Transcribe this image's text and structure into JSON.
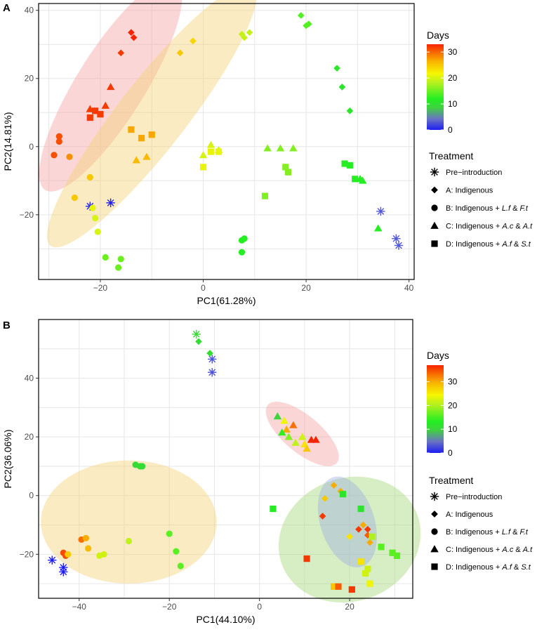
{
  "chart_data": [
    {
      "panel_label": "A",
      "type": "scatter",
      "xlabel": "PC1(61.28%)",
      "ylabel": "PC2(14.81%)",
      "xlim": [
        -32,
        41
      ],
      "ylim": [
        -39,
        42
      ],
      "xticks": [
        -20,
        0,
        20,
        40
      ],
      "xtick_labels": [
        "−20",
        "0",
        "20",
        "40"
      ],
      "yticks": [
        -20,
        0,
        20,
        40
      ],
      "ytick_labels": [
        "−20",
        "0",
        "20",
        "40"
      ],
      "color_scale": {
        "title": "Days",
        "min": 0,
        "max": 33,
        "ticks": [
          0,
          10,
          20,
          30
        ],
        "tick_labels": [
          "0",
          "10",
          "20",
          "30"
        ]
      },
      "legend_title": "Treatment",
      "legend": [
        {
          "shape": "star",
          "label": "Pre−introduction",
          "parts": []
        },
        {
          "shape": "diamond",
          "label": "A: Indigenous",
          "parts": []
        },
        {
          "shape": "circle",
          "label": "B: Indigenous + L.f & F.t",
          "parts": [
            [
              "B: Indigenous + ",
              false
            ],
            [
              "L.f",
              true
            ],
            [
              " & ",
              false
            ],
            [
              "F.t",
              true
            ]
          ]
        },
        {
          "shape": "triangle",
          "label": "C: Indigenous + A.c & A.t",
          "parts": [
            [
              "C: Indigenous + ",
              false
            ],
            [
              "A.c",
              true
            ],
            [
              " & ",
              false
            ],
            [
              "A.t",
              true
            ]
          ]
        },
        {
          "shape": "square",
          "label": "D: Indigenous + A.f & S.t",
          "parts": [
            [
              "D: Indigenous + ",
              false
            ],
            [
              "A.f",
              true
            ],
            [
              " & ",
              false
            ],
            [
              "S.t",
              true
            ]
          ]
        }
      ],
      "ellipses": [
        {
          "cx": -18,
          "cy": 18,
          "rx": 24,
          "ry": 10,
          "angle": 58,
          "color": "#f4a3a3"
        },
        {
          "cx": -10,
          "cy": 9,
          "rx": 32,
          "ry": 10,
          "angle": 52,
          "color": "#f3d27a"
        }
      ],
      "points": [
        {
          "shape": "star",
          "x": -22,
          "y": -17.5,
          "day": 0
        },
        {
          "shape": "star",
          "x": -18,
          "y": -16.5,
          "day": 0
        },
        {
          "shape": "star",
          "x": 34.5,
          "y": -19,
          "day": 3
        },
        {
          "shape": "star",
          "x": 37.5,
          "y": -27,
          "day": 3
        },
        {
          "shape": "star",
          "x": 38,
          "y": -29,
          "day": 3
        },
        {
          "shape": "diamond",
          "x": -14,
          "y": 33.5,
          "day": 33
        },
        {
          "shape": "diamond",
          "x": -13.5,
          "y": 32,
          "day": 33
        },
        {
          "shape": "diamond",
          "x": -16,
          "y": 27.5,
          "day": 32
        },
        {
          "shape": "diamond",
          "x": -2,
          "y": 31,
          "day": 24
        },
        {
          "shape": "diamond",
          "x": -4.5,
          "y": 27.5,
          "day": 25
        },
        {
          "shape": "diamond",
          "x": 7.5,
          "y": 33,
          "day": 19
        },
        {
          "shape": "diamond",
          "x": 8,
          "y": 32,
          "day": 19
        },
        {
          "shape": "diamond",
          "x": 9,
          "y": 33.5,
          "day": 19
        },
        {
          "shape": "diamond",
          "x": 19,
          "y": 38.5,
          "day": 14
        },
        {
          "shape": "diamond",
          "x": 20,
          "y": 35.5,
          "day": 14
        },
        {
          "shape": "diamond",
          "x": 20.5,
          "y": 36,
          "day": 14
        },
        {
          "shape": "diamond",
          "x": 26,
          "y": 23,
          "day": 11
        },
        {
          "shape": "diamond",
          "x": 27,
          "y": 17.5,
          "day": 11
        },
        {
          "shape": "diamond",
          "x": 28.5,
          "y": 10.5,
          "day": 11
        },
        {
          "shape": "circle",
          "x": -28,
          "y": 3,
          "day": 31
        },
        {
          "shape": "circle",
          "x": -28,
          "y": 1.5,
          "day": 31
        },
        {
          "shape": "circle",
          "x": -29,
          "y": -2.5,
          "day": 31
        },
        {
          "shape": "circle",
          "x": -26,
          "y": -3,
          "day": 28
        },
        {
          "shape": "circle",
          "x": -22,
          "y": -9,
          "day": 25
        },
        {
          "shape": "circle",
          "x": -25,
          "y": -15,
          "day": 25
        },
        {
          "shape": "circle",
          "x": -21.5,
          "y": -18,
          "day": 21
        },
        {
          "shape": "circle",
          "x": -21,
          "y": -21,
          "day": 20
        },
        {
          "shape": "circle",
          "x": -20.5,
          "y": -25,
          "day": 20
        },
        {
          "shape": "circle",
          "x": -19,
          "y": -32.5,
          "day": 15
        },
        {
          "shape": "circle",
          "x": -16,
          "y": -33,
          "day": 15
        },
        {
          "shape": "circle",
          "x": -16.5,
          "y": -35.5,
          "day": 15
        },
        {
          "shape": "circle",
          "x": 7.5,
          "y": -27.5,
          "day": 12
        },
        {
          "shape": "circle",
          "x": 8,
          "y": -27,
          "day": 12
        },
        {
          "shape": "circle",
          "x": 7.5,
          "y": -31,
          "day": 12
        },
        {
          "shape": "triangle",
          "x": -22,
          "y": 11,
          "day": 32
        },
        {
          "shape": "triangle",
          "x": -19,
          "y": 12,
          "day": 32
        },
        {
          "shape": "triangle",
          "x": -18,
          "y": 17.5,
          "day": 32
        },
        {
          "shape": "triangle",
          "x": -13,
          "y": -4,
          "day": 26
        },
        {
          "shape": "triangle",
          "x": -11,
          "y": -3,
          "day": 26
        },
        {
          "shape": "triangle",
          "x": 0,
          "y": -2.5,
          "day": 20
        },
        {
          "shape": "triangle",
          "x": 1.5,
          "y": 0.5,
          "day": 20
        },
        {
          "shape": "triangle",
          "x": 3,
          "y": -1,
          "day": 20
        },
        {
          "shape": "triangle",
          "x": 12.5,
          "y": -0.5,
          "day": 16
        },
        {
          "shape": "triangle",
          "x": 15,
          "y": -0.5,
          "day": 16
        },
        {
          "shape": "triangle",
          "x": 17.5,
          "y": -0.5,
          "day": 16
        },
        {
          "shape": "triangle",
          "x": 30.5,
          "y": -9.5,
          "day": 12
        },
        {
          "shape": "triangle",
          "x": 31,
          "y": -10,
          "day": 12
        },
        {
          "shape": "triangle",
          "x": 34,
          "y": -24,
          "day": 12
        },
        {
          "shape": "square",
          "x": -22,
          "y": 8.5,
          "day": 32
        },
        {
          "shape": "square",
          "x": -21,
          "y": 10.5,
          "day": 32
        },
        {
          "shape": "square",
          "x": -20,
          "y": 9.5,
          "day": 32
        },
        {
          "shape": "square",
          "x": -14,
          "y": 5,
          "day": 27
        },
        {
          "shape": "square",
          "x": -12,
          "y": 2.5,
          "day": 27
        },
        {
          "shape": "square",
          "x": -10,
          "y": 3.5,
          "day": 27
        },
        {
          "shape": "square",
          "x": 0,
          "y": -6,
          "day": 21
        },
        {
          "shape": "square",
          "x": 1.5,
          "y": -1.5,
          "day": 21
        },
        {
          "shape": "square",
          "x": 3,
          "y": -1.5,
          "day": 21
        },
        {
          "shape": "square",
          "x": 12,
          "y": -14.5,
          "day": 16
        },
        {
          "shape": "square",
          "x": 16,
          "y": -6,
          "day": 16
        },
        {
          "shape": "square",
          "x": 16.5,
          "y": -7.5,
          "day": 16
        },
        {
          "shape": "square",
          "x": 27.5,
          "y": -5,
          "day": 12
        },
        {
          "shape": "square",
          "x": 28.5,
          "y": -5.5,
          "day": 12
        },
        {
          "shape": "square",
          "x": 29.5,
          "y": -9.5,
          "day": 12
        }
      ]
    },
    {
      "panel_label": "B",
      "type": "scatter",
      "xlabel": "PC1(44.10%)",
      "ylabel": "PC2(36.06%)",
      "xlim": [
        -49,
        34
      ],
      "ylim": [
        -35,
        60
      ],
      "xticks": [
        -40,
        -20,
        0,
        20
      ],
      "xtick_labels": [
        "−40",
        "−20",
        "0",
        "20"
      ],
      "yticks": [
        -20,
        0,
        20,
        40
      ],
      "ytick_labels": [
        "−20",
        "0",
        "20",
        "40"
      ],
      "color_scale": {
        "title": "Days",
        "min": 0,
        "max": 37,
        "ticks": [
          0,
          10,
          20,
          30
        ],
        "tick_labels": [
          "0",
          "10",
          "20",
          "30"
        ]
      },
      "legend_title": "Treatment",
      "legend": [
        {
          "shape": "star",
          "label": "Pre−introduction",
          "parts": []
        },
        {
          "shape": "diamond",
          "label": "A: Indigenous",
          "parts": []
        },
        {
          "shape": "circle",
          "label": "B: Indigenous + L.f & F.t",
          "parts": [
            [
              "B: Indigenous + ",
              false
            ],
            [
              "L.f",
              true
            ],
            [
              " & ",
              false
            ],
            [
              "F.t",
              true
            ]
          ]
        },
        {
          "shape": "triangle",
          "label": "C: Indigenous + A.c & A.t",
          "parts": [
            [
              "C: Indigenous + ",
              false
            ],
            [
              "A.c",
              true
            ],
            [
              " & ",
              false
            ],
            [
              "A.t",
              true
            ]
          ]
        },
        {
          "shape": "square",
          "label": "D: Indigenous + A.f & S.t",
          "parts": [
            [
              "D: Indigenous + ",
              false
            ],
            [
              "A.f",
              true
            ],
            [
              " & ",
              false
            ],
            [
              "S.t",
              true
            ]
          ]
        }
      ],
      "ellipses": [
        {
          "cx": -29,
          "cy": -9,
          "rx": 19.5,
          "ry": 21,
          "angle": 0,
          "color": "#f3d27a"
        },
        {
          "cx": 9.5,
          "cy": 21,
          "rx": 10,
          "ry": 6.3,
          "angle": -40,
          "color": "#f4a3a3"
        },
        {
          "cx": 20,
          "cy": -15,
          "rx": 16,
          "ry": 21,
          "angle": 20,
          "color": "#a7d67c"
        },
        {
          "cx": 19.5,
          "cy": -9,
          "rx": 6,
          "ry": 16,
          "angle": 18,
          "color": "#9fb4e0"
        }
      ],
      "points": [
        {
          "shape": "star",
          "x": -14,
          "y": 55,
          "day": 11
        },
        {
          "shape": "star",
          "x": -10.5,
          "y": 46.5,
          "day": 3
        },
        {
          "shape": "star",
          "x": -10.5,
          "y": 42,
          "day": 3
        },
        {
          "shape": "star",
          "x": -46,
          "y": -22,
          "day": 0
        },
        {
          "shape": "star",
          "x": -43.5,
          "y": -24.5,
          "day": 0
        },
        {
          "shape": "star",
          "x": -43.5,
          "y": -26,
          "day": 0
        },
        {
          "shape": "diamond",
          "x": -13.5,
          "y": 52.5,
          "day": 11
        },
        {
          "shape": "diamond",
          "x": -11,
          "y": 48.5,
          "day": 11
        },
        {
          "shape": "diamond",
          "x": 16.5,
          "y": 3.5,
          "day": 30
        },
        {
          "shape": "diamond",
          "x": 18,
          "y": 1.5,
          "day": 30
        },
        {
          "shape": "diamond",
          "x": 14.5,
          "y": -1,
          "day": 28
        },
        {
          "shape": "diamond",
          "x": 14,
          "y": -7,
          "day": 36
        },
        {
          "shape": "diamond",
          "x": 23,
          "y": -10,
          "day": 30
        },
        {
          "shape": "diamond",
          "x": 22,
          "y": -11.5,
          "day": 36
        },
        {
          "shape": "diamond",
          "x": 24,
          "y": -11.5,
          "day": 36
        },
        {
          "shape": "diamond",
          "x": 20,
          "y": -14,
          "day": 26
        },
        {
          "shape": "diamond",
          "x": 24.5,
          "y": -16,
          "day": 30
        },
        {
          "shape": "diamond",
          "x": 24,
          "y": -13.5,
          "day": 34
        },
        {
          "shape": "circle",
          "x": -27.5,
          "y": 10.5,
          "day": 11
        },
        {
          "shape": "circle",
          "x": -26.5,
          "y": 10,
          "day": 11
        },
        {
          "shape": "circle",
          "x": -26,
          "y": 10,
          "day": 11
        },
        {
          "shape": "circle",
          "x": -39.5,
          "y": -15,
          "day": 33
        },
        {
          "shape": "circle",
          "x": -38.5,
          "y": -14.5,
          "day": 30
        },
        {
          "shape": "circle",
          "x": -38,
          "y": -18,
          "day": 29
        },
        {
          "shape": "circle",
          "x": -35.5,
          "y": -20.5,
          "day": 22
        },
        {
          "shape": "circle",
          "x": -34.5,
          "y": -20,
          "day": 22
        },
        {
          "shape": "circle",
          "x": -29,
          "y": -15.5,
          "day": 21
        },
        {
          "shape": "circle",
          "x": -20,
          "y": -13,
          "day": 16
        },
        {
          "shape": "circle",
          "x": -18.5,
          "y": -19,
          "day": 16
        },
        {
          "shape": "circle",
          "x": -17.5,
          "y": -24,
          "day": 16
        },
        {
          "shape": "circle",
          "x": -43.5,
          "y": -19.5,
          "day": 35
        },
        {
          "shape": "circle",
          "x": -43,
          "y": -20.5,
          "day": 35
        },
        {
          "shape": "circle",
          "x": -42.5,
          "y": -20,
          "day": 28
        },
        {
          "shape": "triangle",
          "x": 4,
          "y": 27,
          "day": 10
        },
        {
          "shape": "triangle",
          "x": 5.5,
          "y": 25.5,
          "day": 24
        },
        {
          "shape": "triangle",
          "x": 6,
          "y": 22.5,
          "day": 30
        },
        {
          "shape": "triangle",
          "x": 7.5,
          "y": 24,
          "day": 33
        },
        {
          "shape": "triangle",
          "x": 5,
          "y": 21.5,
          "day": 14
        },
        {
          "shape": "triangle",
          "x": 6.5,
          "y": 20,
          "day": 18
        },
        {
          "shape": "triangle",
          "x": 8,
          "y": 18,
          "day": 21
        },
        {
          "shape": "triangle",
          "x": 9.5,
          "y": 20,
          "day": 22
        },
        {
          "shape": "triangle",
          "x": 10,
          "y": 17.5,
          "day": 26
        },
        {
          "shape": "triangle",
          "x": 10.5,
          "y": 16,
          "day": 28
        },
        {
          "shape": "triangle",
          "x": 11.5,
          "y": 19,
          "day": 37
        },
        {
          "shape": "triangle",
          "x": 12.5,
          "y": 19,
          "day": 37
        },
        {
          "shape": "square",
          "x": 3,
          "y": -4.5,
          "day": 13
        },
        {
          "shape": "square",
          "x": 18.5,
          "y": 0.5,
          "day": 12
        },
        {
          "shape": "square",
          "x": 22.5,
          "y": -4.5,
          "day": 12
        },
        {
          "shape": "square",
          "x": 25,
          "y": -14,
          "day": 20
        },
        {
          "shape": "square",
          "x": 27,
          "y": -17.5,
          "day": 16
        },
        {
          "shape": "square",
          "x": 29.5,
          "y": -19.5,
          "day": 16
        },
        {
          "shape": "square",
          "x": 30.5,
          "y": -20.5,
          "day": 16
        },
        {
          "shape": "square",
          "x": 10.5,
          "y": -21.5,
          "day": 36
        },
        {
          "shape": "square",
          "x": 22.5,
          "y": -22.5,
          "day": 26
        },
        {
          "shape": "square",
          "x": 24,
          "y": -25,
          "day": 22
        },
        {
          "shape": "square",
          "x": 23.5,
          "y": -26.5,
          "day": 22
        },
        {
          "shape": "square",
          "x": 24.5,
          "y": -30,
          "day": 24
        },
        {
          "shape": "square",
          "x": 16.5,
          "y": -31,
          "day": 28
        },
        {
          "shape": "square",
          "x": 17.5,
          "y": -31,
          "day": 34
        },
        {
          "shape": "square",
          "x": 20.5,
          "y": -32,
          "day": 36
        }
      ]
    }
  ]
}
